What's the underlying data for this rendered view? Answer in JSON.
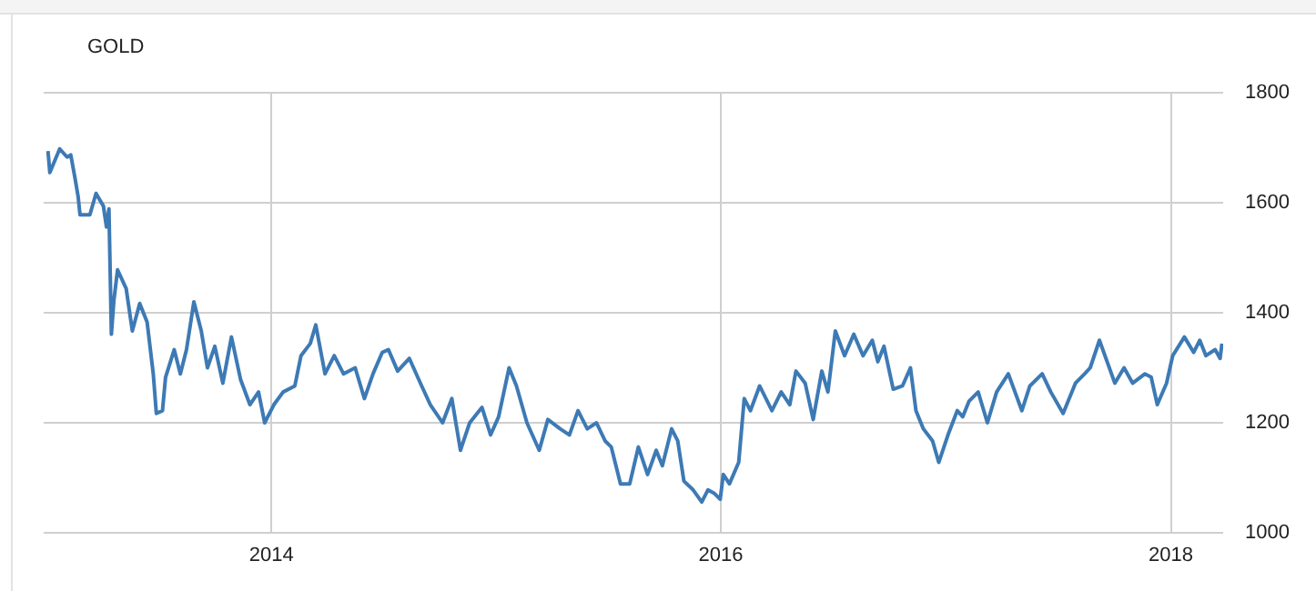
{
  "chart_data": {
    "type": "line",
    "title": "GOLD",
    "x": [
      "2013-01-03",
      "2013-01-06",
      "2013-01-22",
      "2013-02-03",
      "2013-02-09",
      "2013-02-16",
      "2013-02-21",
      "2013-02-24",
      "2013-03-12",
      "2013-03-22",
      "2013-04-03",
      "2013-04-08",
      "2013-04-12",
      "2013-04-16",
      "2013-04-20",
      "2013-04-26",
      "2013-05-10",
      "2013-05-20",
      "2013-06-01",
      "2013-06-13",
      "2013-06-23",
      "2013-06-28",
      "2013-07-08",
      "2013-07-13",
      "2013-07-27",
      "2013-08-06",
      "2013-08-16",
      "2013-08-28",
      "2013-09-09",
      "2013-09-19",
      "2013-10-01",
      "2013-10-14",
      "2013-10-28",
      "2013-11-12",
      "2013-11-27",
      "2013-12-11",
      "2013-12-21",
      "2014-01-05",
      "2014-01-20",
      "2014-02-08",
      "2014-02-18",
      "2014-03-05",
      "2014-03-14",
      "2014-03-29",
      "2014-04-13",
      "2014-04-28",
      "2014-05-17",
      "2014-06-01",
      "2014-06-15",
      "2014-06-30",
      "2014-07-10",
      "2014-07-25",
      "2014-08-13",
      "2014-09-02",
      "2014-09-16",
      "2014-10-06",
      "2014-10-21",
      "2014-11-04",
      "2014-11-19",
      "2014-12-09",
      "2014-12-23",
      "2015-01-05",
      "2015-01-22",
      "2015-02-03",
      "2015-02-20",
      "2015-03-12",
      "2015-03-26",
      "2015-04-15",
      "2015-04-30",
      "2015-05-14",
      "2015-05-29",
      "2015-06-13",
      "2015-06-27",
      "2015-07-07",
      "2015-07-22",
      "2015-08-06",
      "2015-08-20",
      "2015-09-04",
      "2015-09-18",
      "2015-09-28",
      "2015-10-13",
      "2015-10-23",
      "2015-11-02",
      "2015-11-17",
      "2015-12-01",
      "2015-12-11",
      "2015-12-21",
      "2015-12-31",
      "2016-01-05",
      "2016-01-15",
      "2016-01-30",
      "2016-02-08",
      "2016-02-18",
      "2016-03-04",
      "2016-03-24",
      "2016-04-08",
      "2016-04-22",
      "2016-05-02",
      "2016-05-17",
      "2016-05-30",
      "2016-06-13",
      "2016-06-23",
      "2016-07-05",
      "2016-07-20",
      "2016-08-04",
      "2016-08-19",
      "2016-09-03",
      "2016-09-12",
      "2016-09-22",
      "2016-10-07",
      "2016-10-22",
      "2016-11-04",
      "2016-11-13",
      "2016-11-25",
      "2016-12-10",
      "2016-12-20",
      "2017-01-04",
      "2017-01-19",
      "2017-01-28",
      "2017-02-07",
      "2017-02-22",
      "2017-03-09",
      "2017-03-24",
      "2017-04-12",
      "2017-05-04",
      "2017-05-17",
      "2017-06-06",
      "2017-06-20",
      "2017-07-10",
      "2017-07-30",
      "2017-08-14",
      "2017-08-23",
      "2017-09-07",
      "2017-10-02",
      "2017-10-17",
      "2017-10-31",
      "2017-11-20",
      "2017-11-30",
      "2017-12-10",
      "2017-12-25",
      "2018-01-04",
      "2018-01-23",
      "2018-02-07",
      "2018-02-17",
      "2018-02-27",
      "2018-03-14",
      "2018-03-22",
      "2018-03-25"
    ],
    "series": [
      {
        "color": "#3d7ab5",
        "values": [
          1694,
          1655,
          1698,
          1683,
          1687,
          1644,
          1611,
          1578,
          1578,
          1617,
          1594,
          1556,
          1589,
          1361,
          1422,
          1478,
          1444,
          1367,
          1417,
          1383,
          1289,
          1217,
          1222,
          1283,
          1333,
          1289,
          1333,
          1420,
          1367,
          1300,
          1339,
          1272,
          1356,
          1278,
          1233,
          1256,
          1200,
          1233,
          1256,
          1267,
          1322,
          1344,
          1378,
          1289,
          1322,
          1289,
          1300,
          1244,
          1289,
          1328,
          1333,
          1294,
          1317,
          1267,
          1233,
          1200,
          1244,
          1150,
          1200,
          1228,
          1178,
          1211,
          1300,
          1267,
          1200,
          1150,
          1206,
          1189,
          1178,
          1222,
          1189,
          1200,
          1167,
          1156,
          1089,
          1089,
          1156,
          1106,
          1150,
          1122,
          1189,
          1167,
          1094,
          1078,
          1056,
          1078,
          1072,
          1061,
          1106,
          1089,
          1128,
          1244,
          1222,
          1267,
          1222,
          1256,
          1233,
          1294,
          1272,
          1206,
          1294,
          1256,
          1367,
          1322,
          1361,
          1322,
          1350,
          1311,
          1339,
          1261,
          1267,
          1300,
          1222,
          1189,
          1167,
          1128,
          1178,
          1222,
          1211,
          1239,
          1256,
          1200,
          1256,
          1289,
          1222,
          1267,
          1289,
          1256,
          1217,
          1272,
          1289,
          1300,
          1350,
          1272,
          1300,
          1272,
          1289,
          1283,
          1233,
          1272,
          1322,
          1356,
          1328,
          1350,
          1322,
          1333,
          1317,
          1344
        ]
      }
    ],
    "xlim": [
      "2012-12-27",
      "2018-03-27"
    ],
    "xticks": [
      {
        "value": "2014-01-01",
        "label": "2014"
      },
      {
        "value": "2016-01-01",
        "label": "2016"
      },
      {
        "value": "2018-01-01",
        "label": "2018"
      }
    ],
    "ylim": [
      1000,
      1800
    ],
    "yticks": [
      1000,
      1200,
      1400,
      1600,
      1800
    ],
    "grid": true,
    "legend": false,
    "marker": "none",
    "line_style": "solid"
  }
}
